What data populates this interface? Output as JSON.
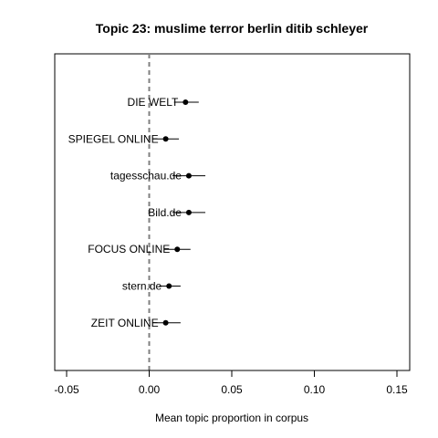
{
  "chart_data": {
    "type": "scatter",
    "title": "Topic 23: muslime terror berlin ditib schleyer",
    "xlabel": "Mean topic proportion in corpus",
    "ylabel": "",
    "xlim": [
      -0.055,
      0.157
    ],
    "xticks": [
      -0.05,
      0.0,
      0.05,
      0.1,
      0.15
    ],
    "xtick_labels": [
      "-0.05",
      "0.00",
      "0.05",
      "0.10",
      "0.15"
    ],
    "reference_line_x": 0,
    "grid": false,
    "legend": "none",
    "categories": [
      "DIE WELT",
      "SPIEGEL ONLINE",
      "tagesschau.de",
      "Bild.de",
      "FOCUS ONLINE",
      "stern.de",
      "ZEIT ONLINE"
    ],
    "estimates": [
      {
        "label": "DIE WELT",
        "mean": 0.022,
        "lower": 0.015,
        "upper": 0.03
      },
      {
        "label": "SPIEGEL ONLINE",
        "mean": 0.01,
        "lower": 0.002,
        "upper": 0.018
      },
      {
        "label": "tagesschau.de",
        "mean": 0.024,
        "lower": 0.014,
        "upper": 0.034
      },
      {
        "label": "Bild.de",
        "mean": 0.024,
        "lower": 0.014,
        "upper": 0.034
      },
      {
        "label": "FOCUS ONLINE",
        "mean": 0.017,
        "lower": 0.009,
        "upper": 0.025
      },
      {
        "label": "stern.de",
        "mean": 0.012,
        "lower": 0.006,
        "upper": 0.019
      },
      {
        "label": "ZEIT ONLINE",
        "mean": 0.01,
        "lower": 0.002,
        "upper": 0.019
      }
    ]
  }
}
